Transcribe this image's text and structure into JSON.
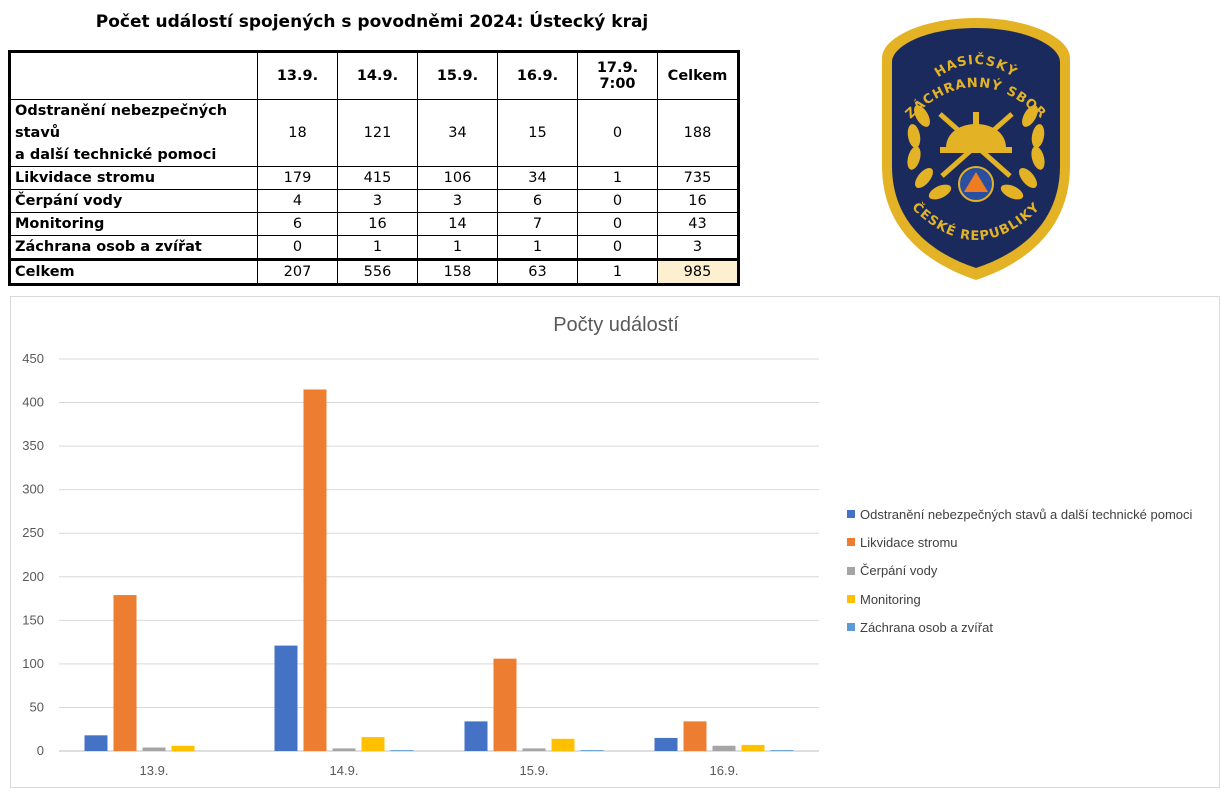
{
  "title": "Počet událostí spojených s povodněmi 2024: Ústecký kraj",
  "table": {
    "headers": [
      "",
      "13.9.",
      "14.9.",
      "15.9.",
      "16.9.",
      "17.9. 7:00",
      "Celkem"
    ],
    "rows": [
      {
        "label_lines": [
          "Odstranění nebezpečných stavů",
          "a další technické pomoci"
        ],
        "values": [
          "18",
          "121",
          "34",
          "15",
          "0",
          "188"
        ]
      },
      {
        "label_lines": [
          "Likvidace stromu"
        ],
        "values": [
          "179",
          "415",
          "106",
          "34",
          "1",
          "735"
        ]
      },
      {
        "label_lines": [
          "Čerpání vody"
        ],
        "values": [
          "4",
          "3",
          "3",
          "6",
          "0",
          "16"
        ]
      },
      {
        "label_lines": [
          "Monitoring"
        ],
        "values": [
          "6",
          "16",
          "14",
          "7",
          "0",
          "43"
        ]
      },
      {
        "label_lines": [
          "Záchrana osob a zvířat"
        ],
        "values": [
          "0",
          "1",
          "1",
          "1",
          "0",
          "3"
        ]
      }
    ],
    "total": {
      "label": "Celkem",
      "values": [
        "207",
        "556",
        "158",
        "63",
        "1",
        "985"
      ]
    },
    "highlight_color": "#fdf0d0"
  },
  "logo": {
    "top_text": "HASIČSKÝ",
    "middle_text": "ZÁCHRANNÝ SBOR",
    "bottom_text": "ČESKÉ REPUBLIKY",
    "colors": {
      "background": "#1b2a5c",
      "border": "#e3b325",
      "emblem": "#e3b325",
      "triangle": "#2a4fa0",
      "triangle_inner": "#ee7d22"
    }
  },
  "chart_data": {
    "type": "bar",
    "title": "Počty událostí",
    "categories": [
      "13.9.",
      "14.9.",
      "15.9.",
      "16.9."
    ],
    "ylim": [
      0,
      450
    ],
    "yticks": [
      0,
      50,
      100,
      150,
      200,
      250,
      300,
      350,
      400,
      450
    ],
    "grid": true,
    "legend_position": "right",
    "series": [
      {
        "name": "Odstranění nebezpečných stavů a další technické pomoci",
        "values": [
          18,
          121,
          34,
          15
        ],
        "color": "#4472c4"
      },
      {
        "name": "Likvidace stromu",
        "values": [
          179,
          415,
          106,
          34
        ],
        "color": "#ed7d31"
      },
      {
        "name": "Čerpání vody",
        "values": [
          4,
          3,
          3,
          6
        ],
        "color": "#a5a5a5"
      },
      {
        "name": "Monitoring",
        "values": [
          6,
          16,
          14,
          7
        ],
        "color": "#ffc000"
      },
      {
        "name": "Záchrana osob a zvířat",
        "values": [
          0,
          1,
          1,
          1
        ],
        "color": "#5b9bd5"
      }
    ]
  }
}
